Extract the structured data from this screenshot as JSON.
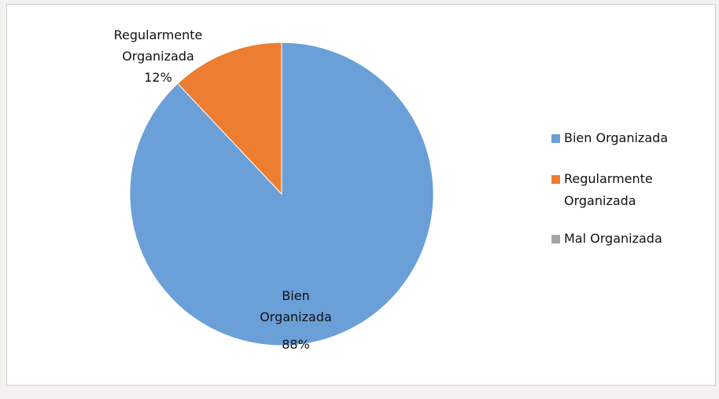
{
  "chart_data": {
    "type": "pie",
    "categories": [
      "Bien Organizada",
      "Regularmente Organizada",
      "Mal Organizada"
    ],
    "values": [
      88,
      12,
      0
    ],
    "value_labels": [
      "88%",
      "12%",
      null
    ],
    "colors": [
      "#6a9fd8",
      "#ed7d31",
      "#a5a5a5"
    ],
    "legend": "right"
  }
}
